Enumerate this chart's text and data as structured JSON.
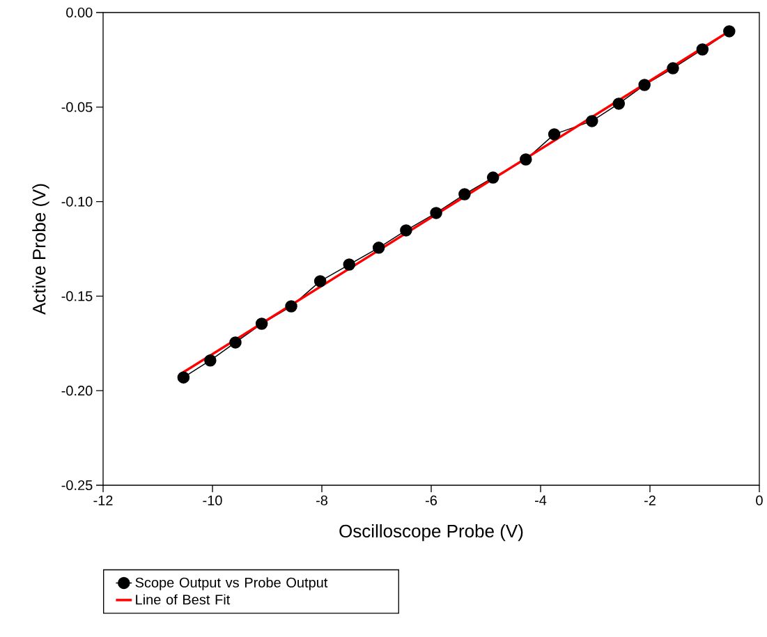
{
  "chart_data": {
    "type": "line",
    "xlabel": "Oscilloscope Probe (V)",
    "ylabel": "Active Probe (V)",
    "xlim": [
      -12,
      0
    ],
    "ylim": [
      -0.25,
      0
    ],
    "xticks": [
      -12,
      -10,
      -8,
      -6,
      -4,
      -2,
      0
    ],
    "yticks": [
      {
        "value": -0.25,
        "label": "-0.25"
      },
      {
        "value": -0.2,
        "label": "-0.20"
      },
      {
        "value": -0.15,
        "label": "-0.15"
      },
      {
        "value": -0.1,
        "label": "-0.10"
      },
      {
        "value": -0.05,
        "label": "-0.05"
      },
      {
        "value": 0,
        "label": "0.00"
      }
    ],
    "grid": false,
    "legend": "bottom left",
    "series": [
      {
        "name": "Scope Output vs Probe Output",
        "color": "#000000",
        "marker": "circle",
        "x": [
          -10.53,
          -10.04,
          -9.58,
          -9.1,
          -8.56,
          -8.03,
          -7.5,
          -6.96,
          -6.46,
          -5.91,
          -5.39,
          -4.87,
          -4.27,
          -3.75,
          -3.06,
          -2.57,
          -2.1,
          -1.58,
          -1.04,
          -0.55
        ],
        "values": [
          -0.193,
          -0.184,
          -0.1745,
          -0.1646,
          -0.1554,
          -0.1421,
          -0.1333,
          -0.1244,
          -0.1152,
          -0.106,
          -0.0961,
          -0.0873,
          -0.0777,
          -0.0644,
          -0.0574,
          -0.0482,
          -0.0383,
          -0.0295,
          -0.0195,
          -0.0099
        ]
      },
      {
        "name": "Line of Best Fit",
        "color": "#ff0000",
        "marker": "none",
        "x": [
          -10.6,
          -0.55
        ],
        "values": [
          -0.1915,
          -0.0099
        ]
      }
    ]
  }
}
